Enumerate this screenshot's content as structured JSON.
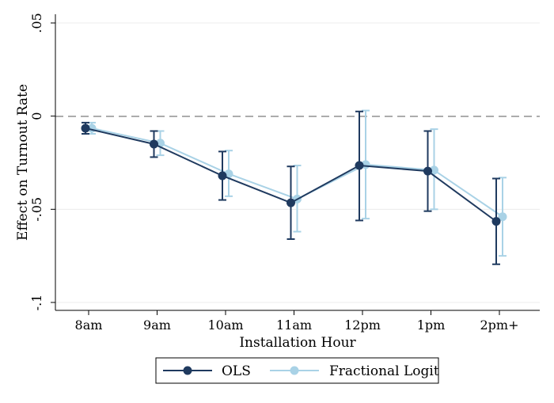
{
  "chart_data": {
    "type": "line",
    "title": "",
    "xlabel": "Installation Hour",
    "ylabel": "Effect on Turnout Rate",
    "categories": [
      "8am",
      "9am",
      "10am",
      "11am",
      "12pm",
      "1pm",
      "2pm+"
    ],
    "ylim": [
      -0.1,
      0.05
    ],
    "yticks": [
      {
        "value": 0.05,
        "label": ".05"
      },
      {
        "value": 0,
        "label": "0"
      },
      {
        "value": -0.05,
        "label": "-.05"
      },
      {
        "value": -0.1,
        "label": "-.1"
      }
    ],
    "reference_line": 0,
    "grid": true,
    "legend_position": "bottom",
    "series": [
      {
        "name": "OLS",
        "color": "#1f3a5f",
        "values": [
          -0.0065,
          -0.015,
          -0.032,
          -0.0465,
          -0.0265,
          -0.0295,
          -0.0565
        ],
        "ci_low": [
          -0.0095,
          -0.022,
          -0.045,
          -0.066,
          -0.056,
          -0.051,
          -0.0795
        ],
        "ci_high": [
          -0.0035,
          -0.008,
          -0.019,
          -0.027,
          0.0025,
          -0.008,
          -0.0335
        ]
      },
      {
        "name": "Fractional Logit",
        "color": "#a9d2e6",
        "values": [
          -0.0065,
          -0.0145,
          -0.031,
          -0.0445,
          -0.026,
          -0.029,
          -0.054
        ],
        "ci_low": [
          -0.0095,
          -0.021,
          -0.043,
          -0.062,
          -0.055,
          -0.05,
          -0.075
        ],
        "ci_high": [
          -0.0035,
          -0.008,
          -0.0185,
          -0.0265,
          0.003,
          -0.007,
          -0.033
        ]
      }
    ]
  }
}
